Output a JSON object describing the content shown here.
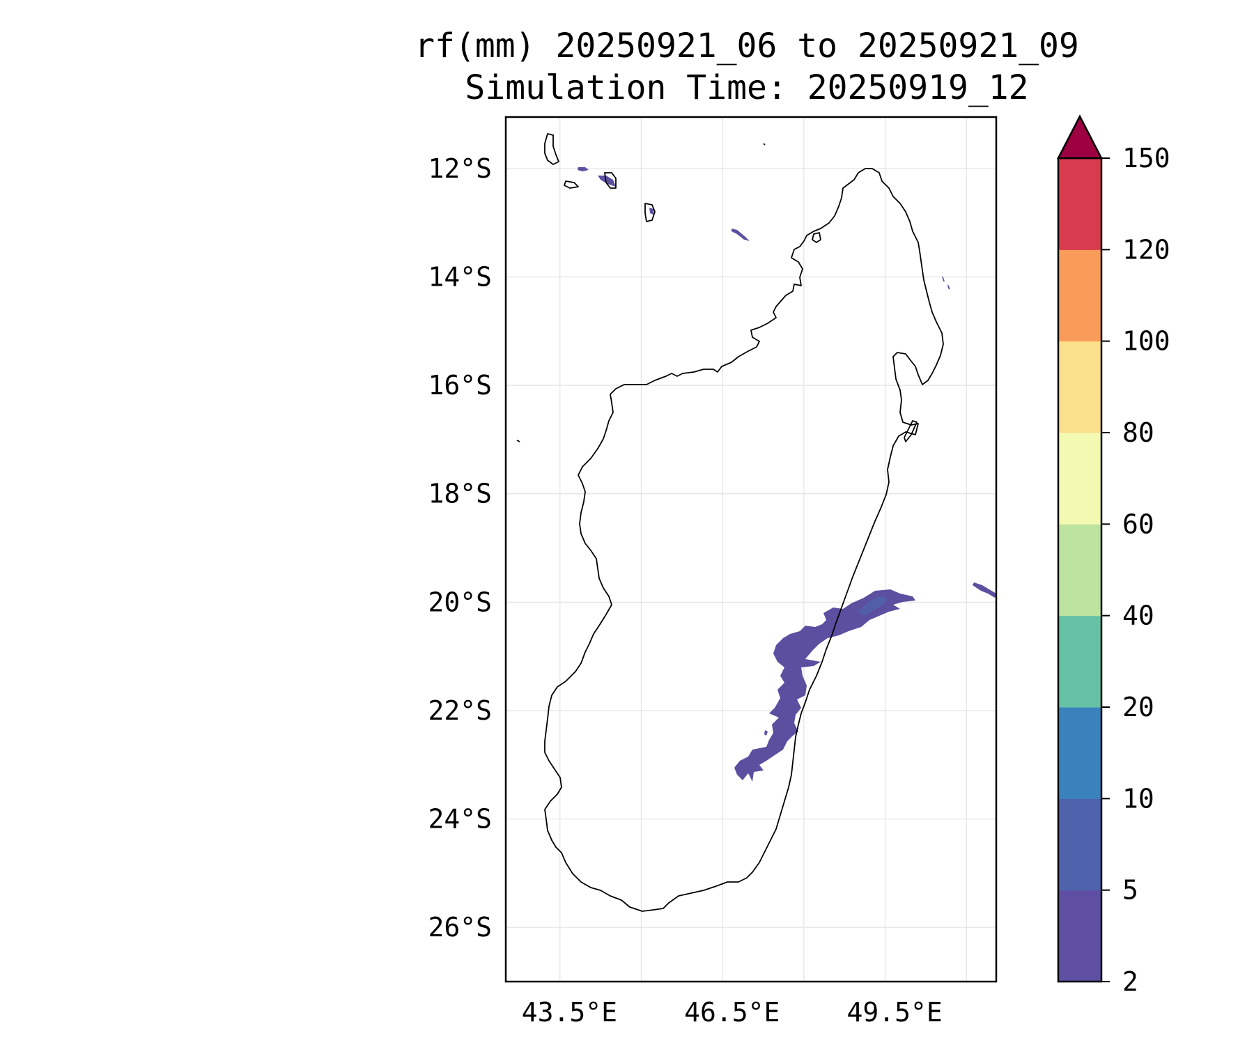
{
  "title": {
    "line1": "rf(mm) 20250921_06 to 20250921_09",
    "line2": "Simulation Time: 20250919_12"
  },
  "map": {
    "lon_range": [
      42.3,
      51.35
    ],
    "lat_range": [
      -27.0,
      -11.05
    ],
    "lat_ticks": [
      {
        "value": -12,
        "label": "12°S"
      },
      {
        "value": -14,
        "label": "14°S"
      },
      {
        "value": -16,
        "label": "16°S"
      },
      {
        "value": -18,
        "label": "18°S"
      },
      {
        "value": -20,
        "label": "20°S"
      },
      {
        "value": -22,
        "label": "22°S"
      },
      {
        "value": -24,
        "label": "24°S"
      },
      {
        "value": -26,
        "label": "26°S"
      }
    ],
    "lon_ticks": [
      {
        "value": 43.5,
        "label": "43.5°E"
      },
      {
        "value": 46.5,
        "label": "46.5°E"
      },
      {
        "value": 49.5,
        "label": "49.5°E"
      }
    ],
    "grid_lons": [
      43.3,
      44.8,
      46.3,
      47.8,
      49.3,
      50.8
    ],
    "grid": true
  },
  "colorbar": {
    "levels": [
      2,
      5,
      10,
      20,
      40,
      60,
      80,
      100,
      120,
      150
    ],
    "labels": [
      "2",
      "5",
      "10",
      "20",
      "40",
      "60",
      "80",
      "100",
      "120",
      "150"
    ],
    "colors": [
      "#5e4fa2",
      "#4f62ac",
      "#3a82bc",
      "#66c2a5",
      "#bde3a0",
      "#f3f9b1",
      "#fbe08b",
      "#f99c59",
      "#d73b4d"
    ],
    "extend_color": "#9e0142",
    "extend": "max"
  }
}
